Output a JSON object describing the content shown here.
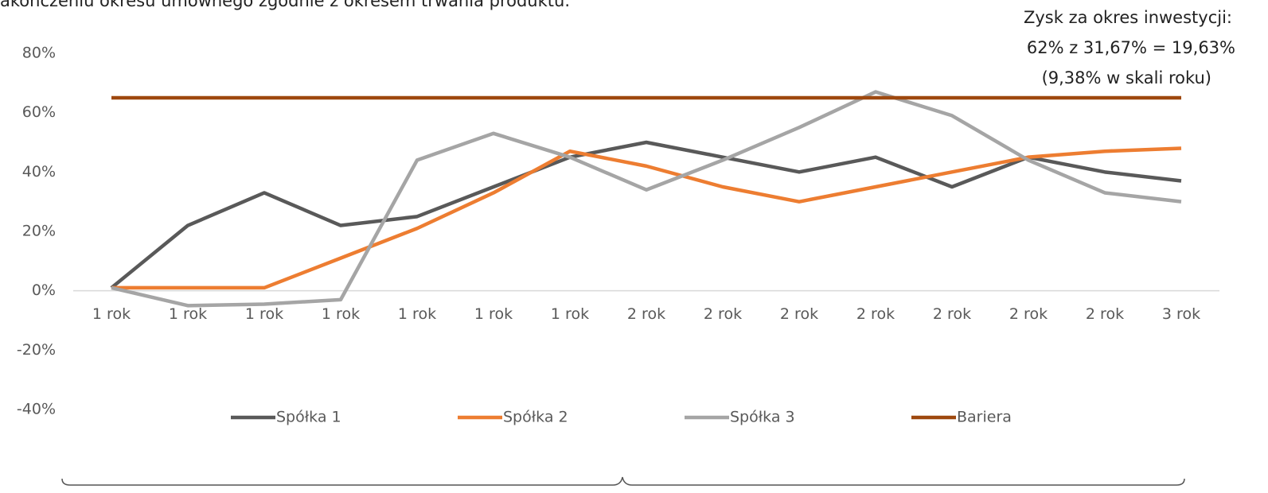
{
  "chart_data": {
    "type": "line",
    "subtitle": "akończeniu okresu umownego zgodnie z okresem trwania produktu.",
    "annotations": [
      "Zysk za okres inwestycji:",
      " 62% z 31,67% = 19,63%",
      "(9,38% w skali roku)"
    ],
    "categories": [
      "1 rok",
      "1 rok",
      "1 rok",
      "1 rok",
      "1 rok",
      "1 rok",
      "1 rok",
      "2 rok",
      "2 rok",
      "2 rok",
      "2 rok",
      "2 rok",
      "2 rok",
      "2 rok",
      "3 rok"
    ],
    "series": [
      {
        "name": "Spółka 1",
        "color": "#595959",
        "values": [
          1,
          22,
          33,
          22,
          25,
          35,
          45,
          50,
          45,
          40,
          45,
          35,
          45,
          40,
          37
        ]
      },
      {
        "name": "Spółka 2",
        "color": "#ed7d31",
        "values": [
          1,
          1,
          1,
          11,
          21,
          33,
          47,
          42,
          35,
          30,
          35,
          40,
          45,
          47,
          48
        ]
      },
      {
        "name": "Spółka 3",
        "color": "#a5a5a5",
        "values": [
          1,
          -5,
          -4.5,
          -3,
          44,
          53,
          45,
          34,
          44,
          55,
          67,
          59,
          44,
          33,
          30
        ]
      },
      {
        "name": "Bariera",
        "color": "#9e480e",
        "values": [
          65,
          65,
          65,
          65,
          65,
          65,
          65,
          65,
          65,
          65,
          65,
          65,
          65,
          65,
          65
        ]
      }
    ],
    "ylim": [
      -40,
      80
    ],
    "yticks": [
      {
        "value": -40,
        "label": "-40%"
      },
      {
        "value": -20,
        "label": "-20%"
      },
      {
        "value": 0,
        "label": "0%"
      },
      {
        "value": 20,
        "label": "20%"
      },
      {
        "value": 40,
        "label": "40%"
      },
      {
        "value": 60,
        "label": "60%"
      },
      {
        "value": 80,
        "label": "80%"
      }
    ],
    "grid": false,
    "legend": "bottom"
  }
}
